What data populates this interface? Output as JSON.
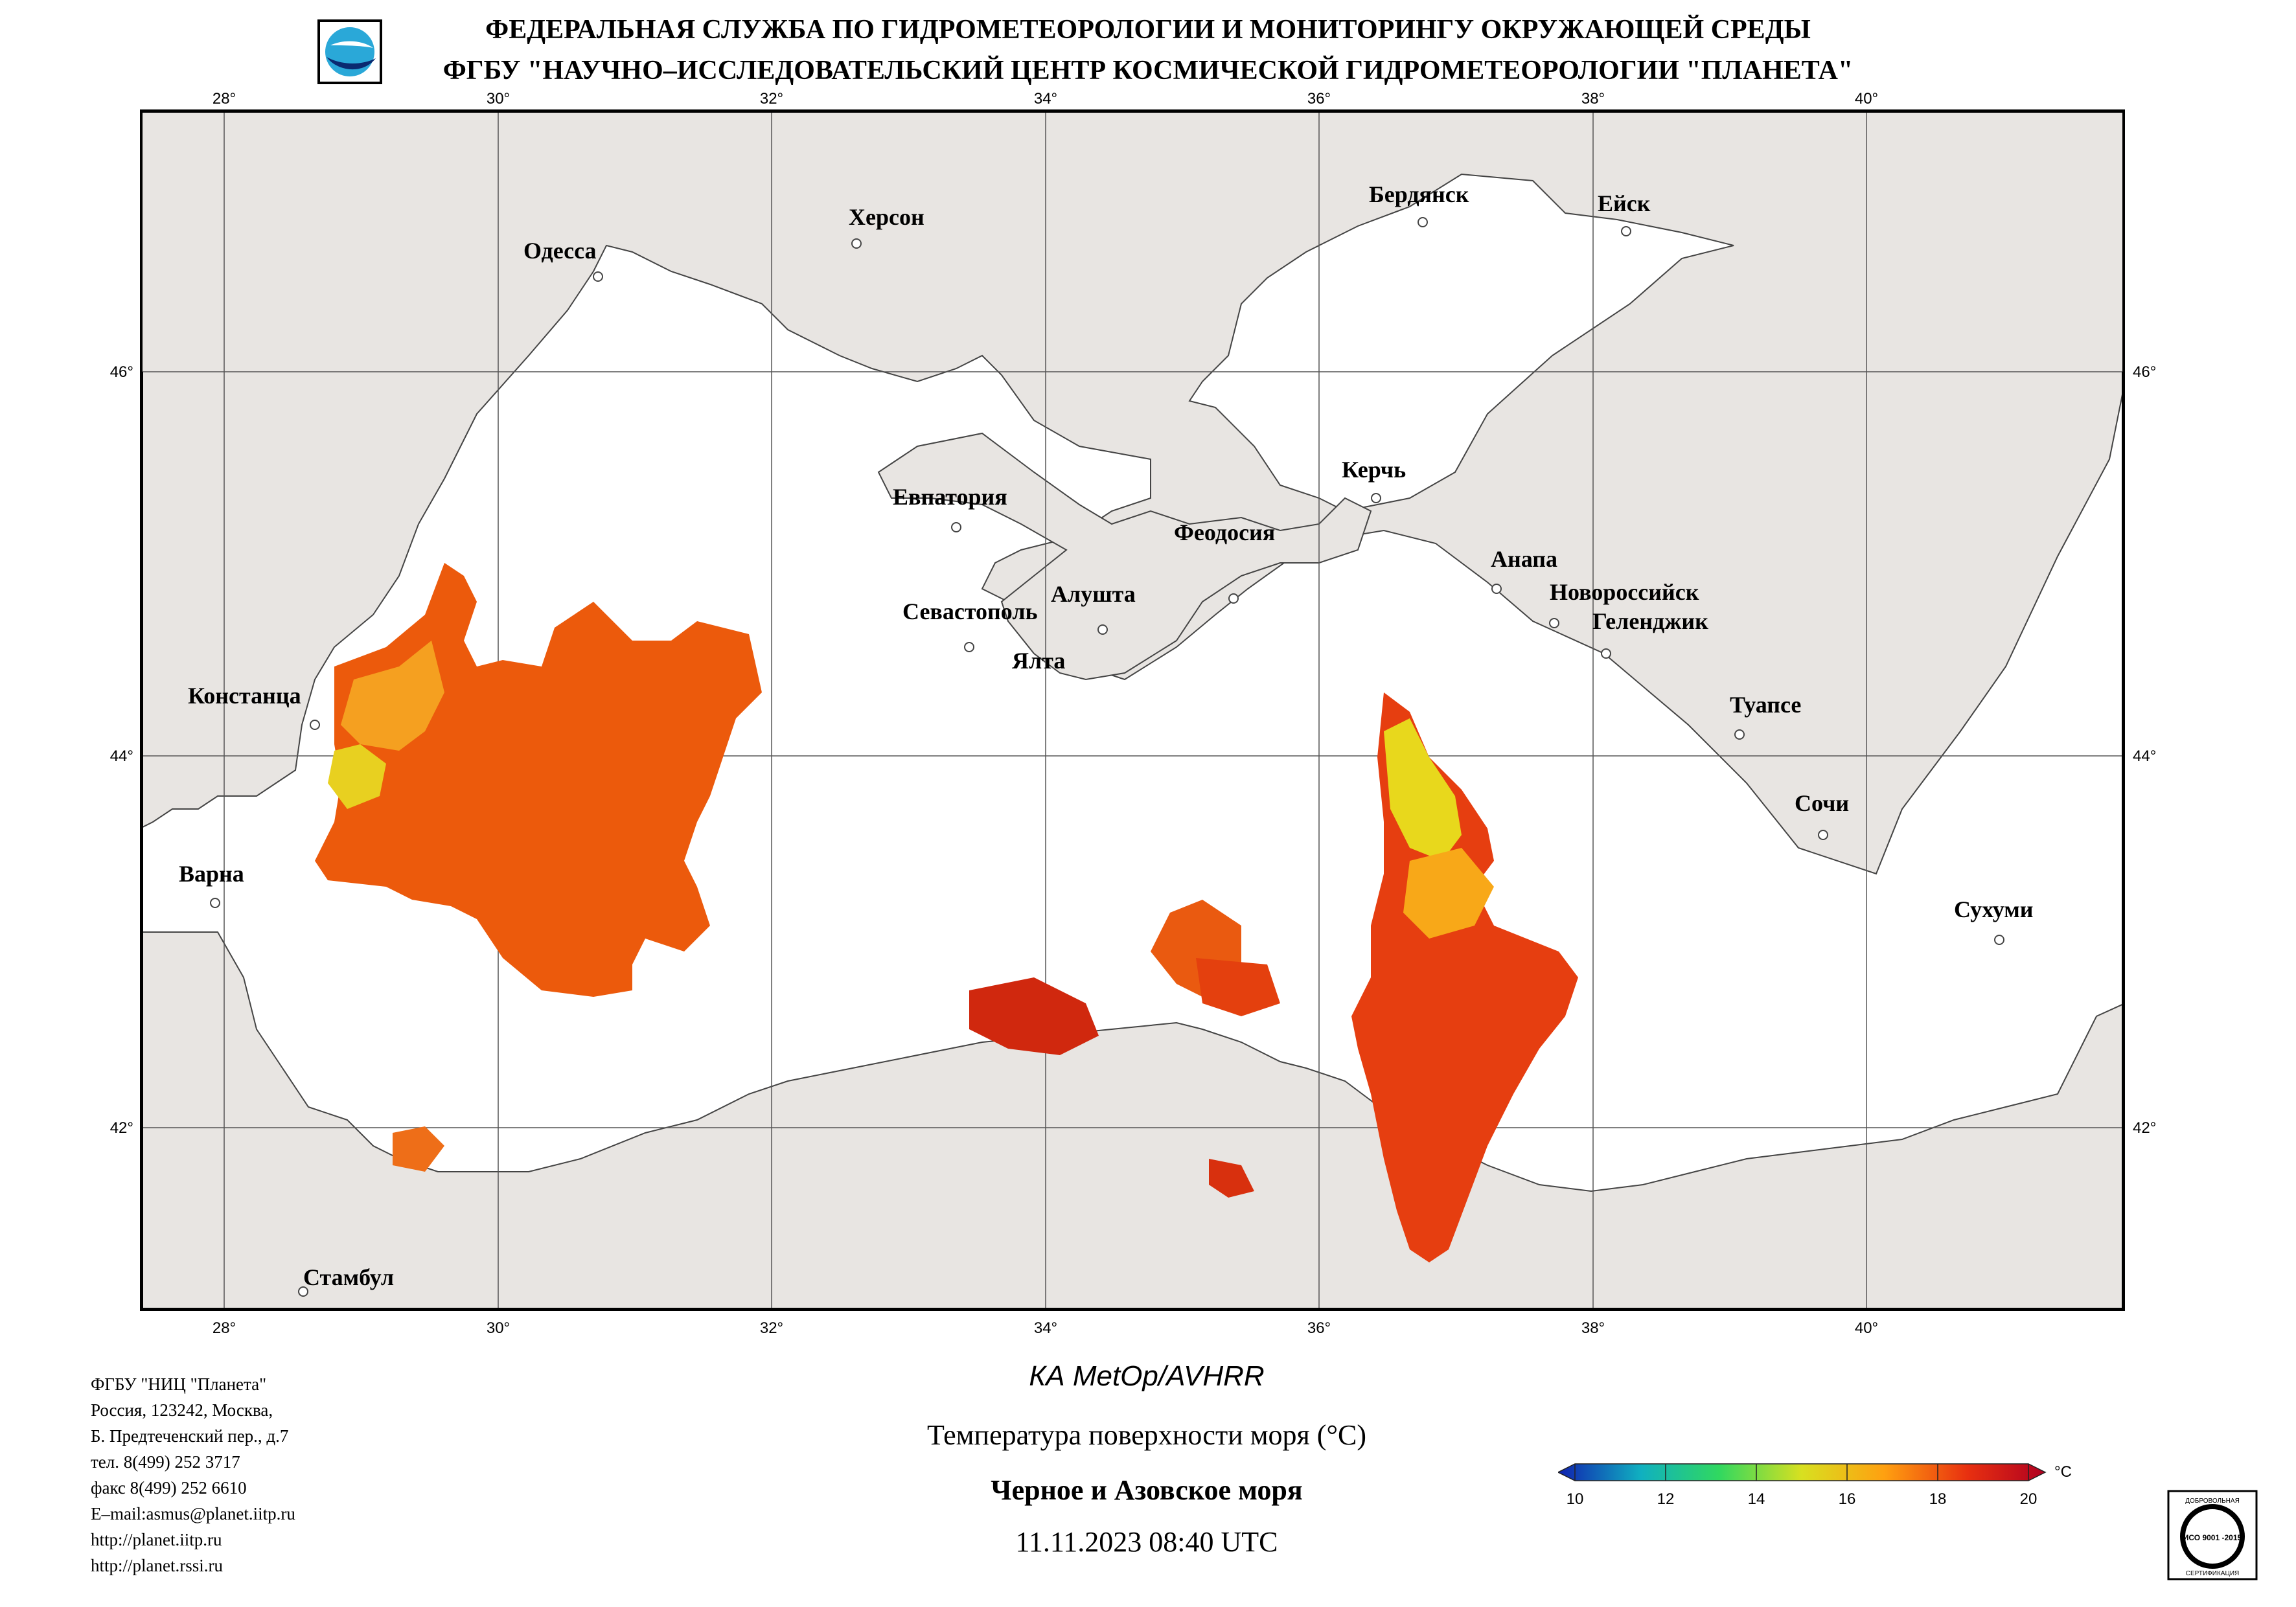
{
  "header": {
    "line1": "ФЕДЕРАЛЬНАЯ СЛУЖБА ПО ГИДРОМЕТЕОРОЛОГИИ И МОНИТОРИНГУ ОКРУЖАЮЩЕЙ СРЕДЫ",
    "line2": "ФГБУ \"НАУЧНО–ИССЛЕДОВАТЕЛЬСКИЙ ЦЕНТР КОСМИЧЕСКОЙ ГИДРОМЕТЕОРОЛОГИИ \"ПЛАНЕТА\""
  },
  "map": {
    "lon_ticks": [
      "28°",
      "30°",
      "32°",
      "34°",
      "36°",
      "38°",
      "40°"
    ],
    "lat_ticks": [
      "46°",
      "44°",
      "42°"
    ],
    "cities": [
      "Одесса",
      "Херсон",
      "Бердянск",
      "Ейск",
      "Евпатория",
      "Керчь",
      "Феодосия",
      "Анапа",
      "Новороссийск",
      "Геленджик",
      "Алушта",
      "Севастополь",
      "Ялта",
      "Констанца",
      "Туапсе",
      "Сочи",
      "Варна",
      "Сухуми",
      "Стамбул"
    ],
    "colors": {
      "land": "#e8e5e2",
      "sea": "#ffffff",
      "border": "#555555"
    }
  },
  "footer": {
    "contact": [
      "ФГБУ \"НИЦ \"Планета\"",
      "Россия, 123242, Москва,",
      "Б. Предтеченский пер., д.7",
      "тел. 8(499) 252 3717",
      "факс 8(499) 252 6610",
      "E–mail:asmus@planet.iitp.ru",
      "http://planet.iitp.ru",
      "http://planet.rssi.ru"
    ],
    "satellite": "КА MetOp/AVHRR",
    "product": "Температура поверхности моря (°C)",
    "region": "Черное и Азовское моря",
    "datetime": "11.11.2023 08:40 UTC"
  },
  "colorbar": {
    "labels": [
      "10",
      "12",
      "14",
      "16",
      "18",
      "20"
    ],
    "unit": "°C",
    "min": 10,
    "max": 20,
    "colors": [
      "#1020b0",
      "#10b0c0",
      "#30d860",
      "#d8e020",
      "#ffa010",
      "#e83010",
      "#b00020"
    ]
  },
  "cert": {
    "top": "ДОБРОВОЛЬНАЯ",
    "middle": "ИСО 9001 -2015",
    "bottom": "СЕРТИФИКАЦИЯ"
  }
}
